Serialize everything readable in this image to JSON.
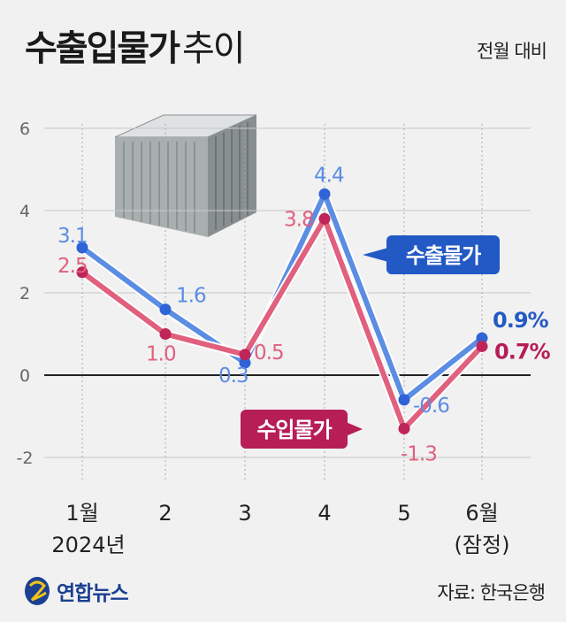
{
  "header": {
    "title_bold": "수출입물가",
    "title_light": "추이",
    "unit": "전월 대비"
  },
  "chart_data": {
    "type": "line",
    "categories": [
      "1월",
      "2",
      "3",
      "4",
      "5",
      "6월"
    ],
    "category_sublabels": [
      "2024년",
      "",
      "",
      "",
      "",
      "(잠정)"
    ],
    "ylim": [
      -2,
      6
    ],
    "yticks": [
      -2,
      0,
      2,
      4,
      6
    ],
    "grid": true,
    "series": [
      {
        "name": "수출물가",
        "color": "#5b8de3",
        "values": [
          3.1,
          1.6,
          0.3,
          4.4,
          -0.6,
          0.9
        ],
        "labels": [
          "3.1",
          "1.6",
          "0.3",
          "4.4",
          "-0.6",
          "0.9%"
        ]
      },
      {
        "name": "수입물가",
        "color": "#e0607e",
        "values": [
          2.5,
          1.0,
          0.5,
          3.8,
          -1.3,
          0.7
        ],
        "labels": [
          "2.5",
          "1.0",
          "0.5",
          "3.8",
          "-1.3",
          "0.7%"
        ]
      }
    ]
  },
  "footer": {
    "logo": "연합뉴스",
    "source": "자료: 한국은행"
  }
}
